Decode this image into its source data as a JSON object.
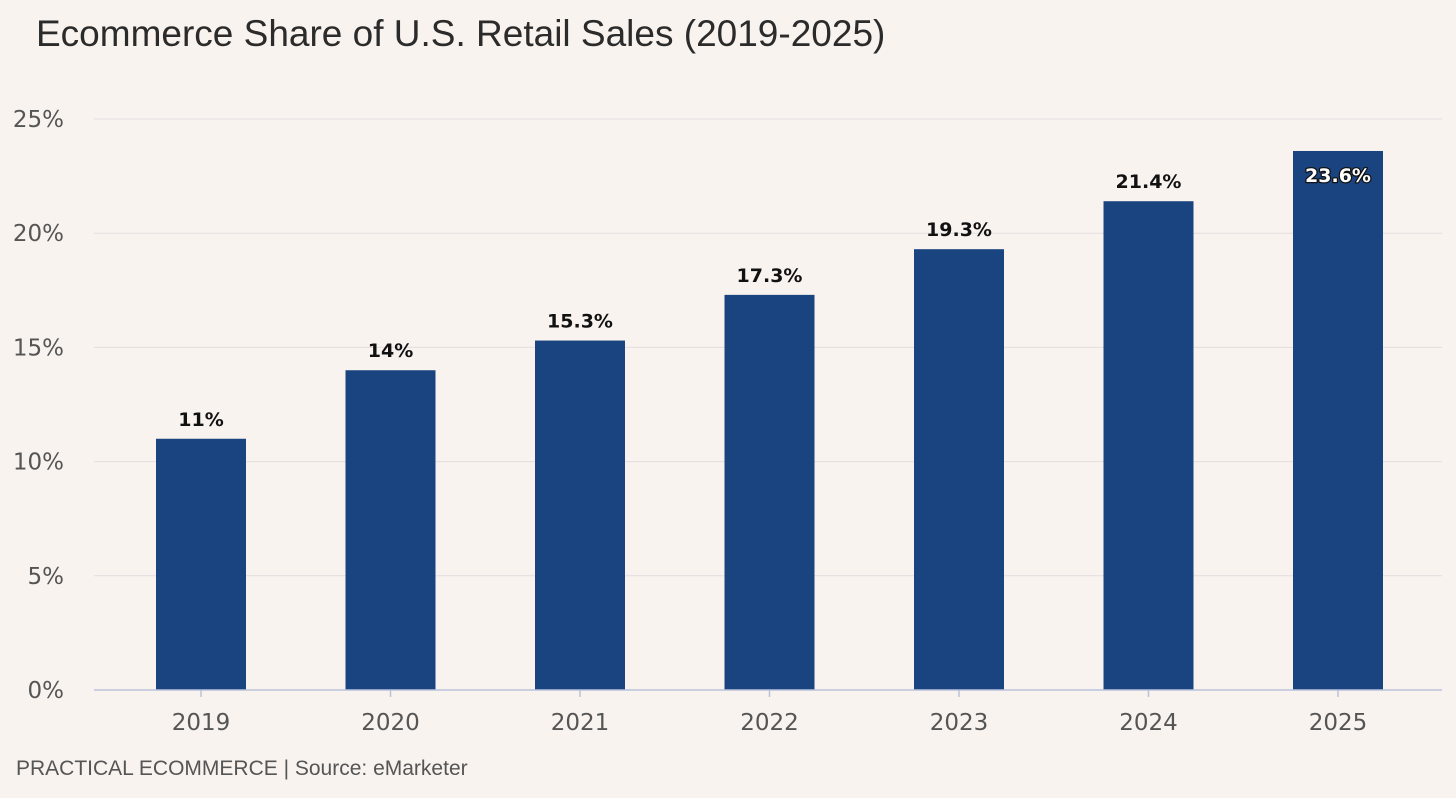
{
  "title": "Ecommerce Share of U.S. Retail Sales (2019-2025)",
  "source": "PRACTICAL ECOMMERCE | Source: eMarketer",
  "colors": {
    "background": "#f9f3ef",
    "bar": "#1a4480",
    "gridline": "#e3dde0",
    "axis": "#b9c1dc",
    "label_text": "#111111",
    "tick_text": "#555555"
  },
  "chart_data": {
    "type": "bar",
    "title": "Ecommerce Share of U.S. Retail Sales (2019-2025)",
    "categories": [
      "2019",
      "2020",
      "2021",
      "2022",
      "2023",
      "2024",
      "2025"
    ],
    "values": [
      11,
      14,
      15.3,
      17.3,
      19.3,
      21.4,
      23.6
    ],
    "data_labels": [
      "11%",
      "14%",
      "15.3%",
      "17.3%",
      "19.3%",
      "21.4%",
      "23.6%"
    ],
    "ylim": [
      0,
      25
    ],
    "yticks": [
      0,
      5,
      10,
      15,
      20,
      25
    ],
    "ytick_labels": [
      "0%",
      "5%",
      "10%",
      "15%",
      "20%",
      "25%"
    ],
    "xlabel": "",
    "ylabel": "",
    "grid": true,
    "legend": "none"
  }
}
